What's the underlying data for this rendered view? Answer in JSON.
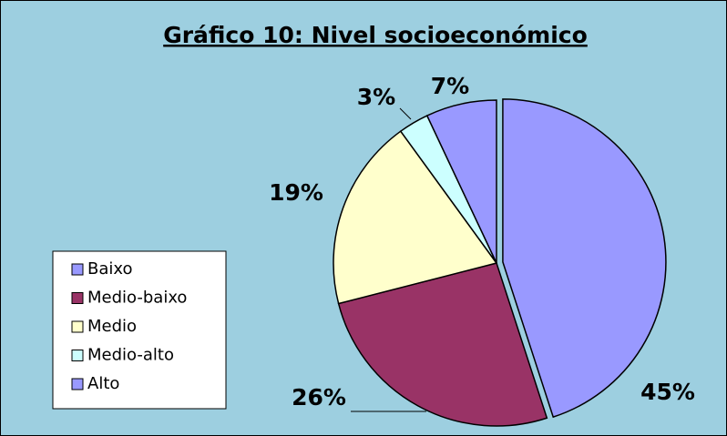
{
  "chart_data": {
    "type": "pie",
    "title": "Gráfico 10: Nivel socioeconómico",
    "categories": [
      "Baixo",
      "Medio-baixo",
      "Medio",
      "Medio-alto",
      "Alto"
    ],
    "values": [
      45,
      26,
      19,
      3,
      7
    ],
    "value_labels": [
      "45%",
      "26%",
      "19%",
      "3%",
      "7%"
    ],
    "colors": [
      "#9999ff",
      "#993366",
      "#ffffcc",
      "#ccffff",
      "#9999ff"
    ],
    "legend": "left"
  }
}
